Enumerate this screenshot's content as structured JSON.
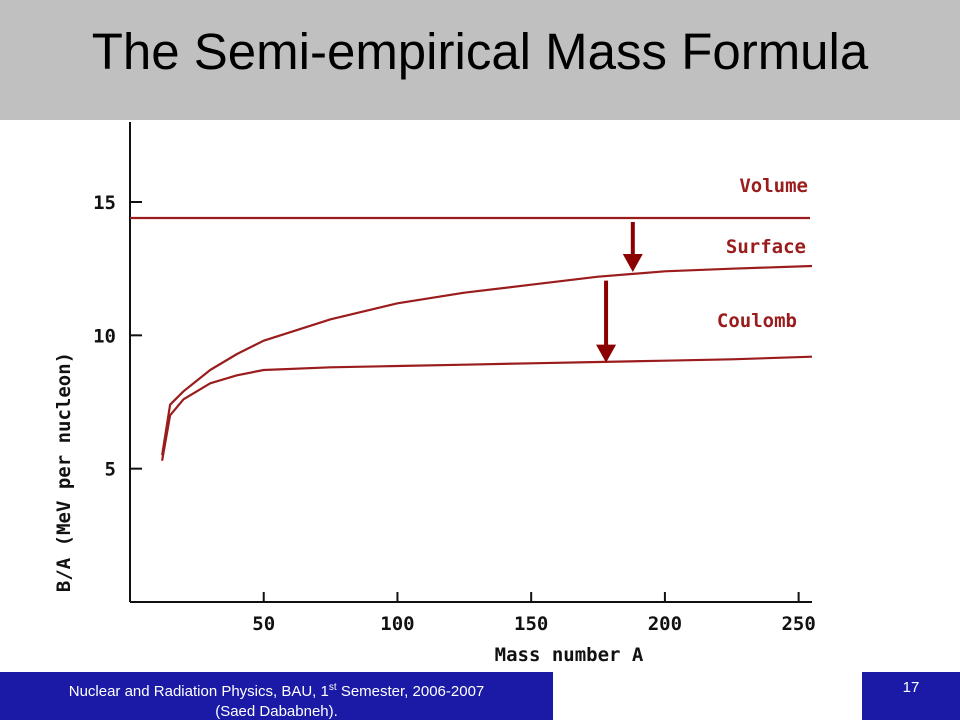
{
  "slide": {
    "title": "The Semi-empirical Mass Formula",
    "footer_text_pre": "Nuclear and Radiation Physics, BAU, 1",
    "footer_text_sup": "st",
    "footer_text_post": " Semester, 2006-2007",
    "footer_text_line2": "(Saed Dababneh).",
    "page_number": "17"
  },
  "colors": {
    "title_bar": "#c0c0c0",
    "footer_bar": "#1a1aa6",
    "curve": "#9b1c1c",
    "arrow": "#8b0000"
  },
  "chart_data": {
    "type": "line",
    "title": "",
    "xlabel": "Mass number A",
    "ylabel": "B/A (MeV per nucleon)",
    "xlim": [
      0,
      255
    ],
    "ylim": [
      0,
      18
    ],
    "xticks": [
      50,
      100,
      150,
      200,
      250
    ],
    "yticks": [
      5,
      10,
      15
    ],
    "grid": false,
    "series": [
      {
        "name": "Volume",
        "x": [
          0,
          255
        ],
        "y": [
          14.4,
          14.4
        ]
      },
      {
        "name": "Surface",
        "x": [
          12,
          15,
          20,
          30,
          40,
          50,
          75,
          100,
          125,
          150,
          175,
          200,
          225,
          255
        ],
        "y": [
          5.5,
          7.4,
          7.9,
          8.7,
          9.3,
          9.8,
          10.6,
          11.2,
          11.6,
          11.9,
          12.2,
          12.4,
          12.5,
          12.6
        ]
      },
      {
        "name": "Coulomb",
        "x": [
          12,
          15,
          20,
          30,
          40,
          50,
          75,
          100,
          125,
          150,
          175,
          200,
          225,
          255
        ],
        "y": [
          5.3,
          7.0,
          7.6,
          8.2,
          8.5,
          8.7,
          8.8,
          8.85,
          8.9,
          8.95,
          9.0,
          9.05,
          9.1,
          9.2
        ]
      }
    ],
    "annotations": [
      {
        "type": "arrow",
        "x": 188,
        "from": 14.4,
        "to": 12.3
      },
      {
        "type": "arrow",
        "x": 178,
        "from": 12.2,
        "to": 8.9
      }
    ]
  }
}
